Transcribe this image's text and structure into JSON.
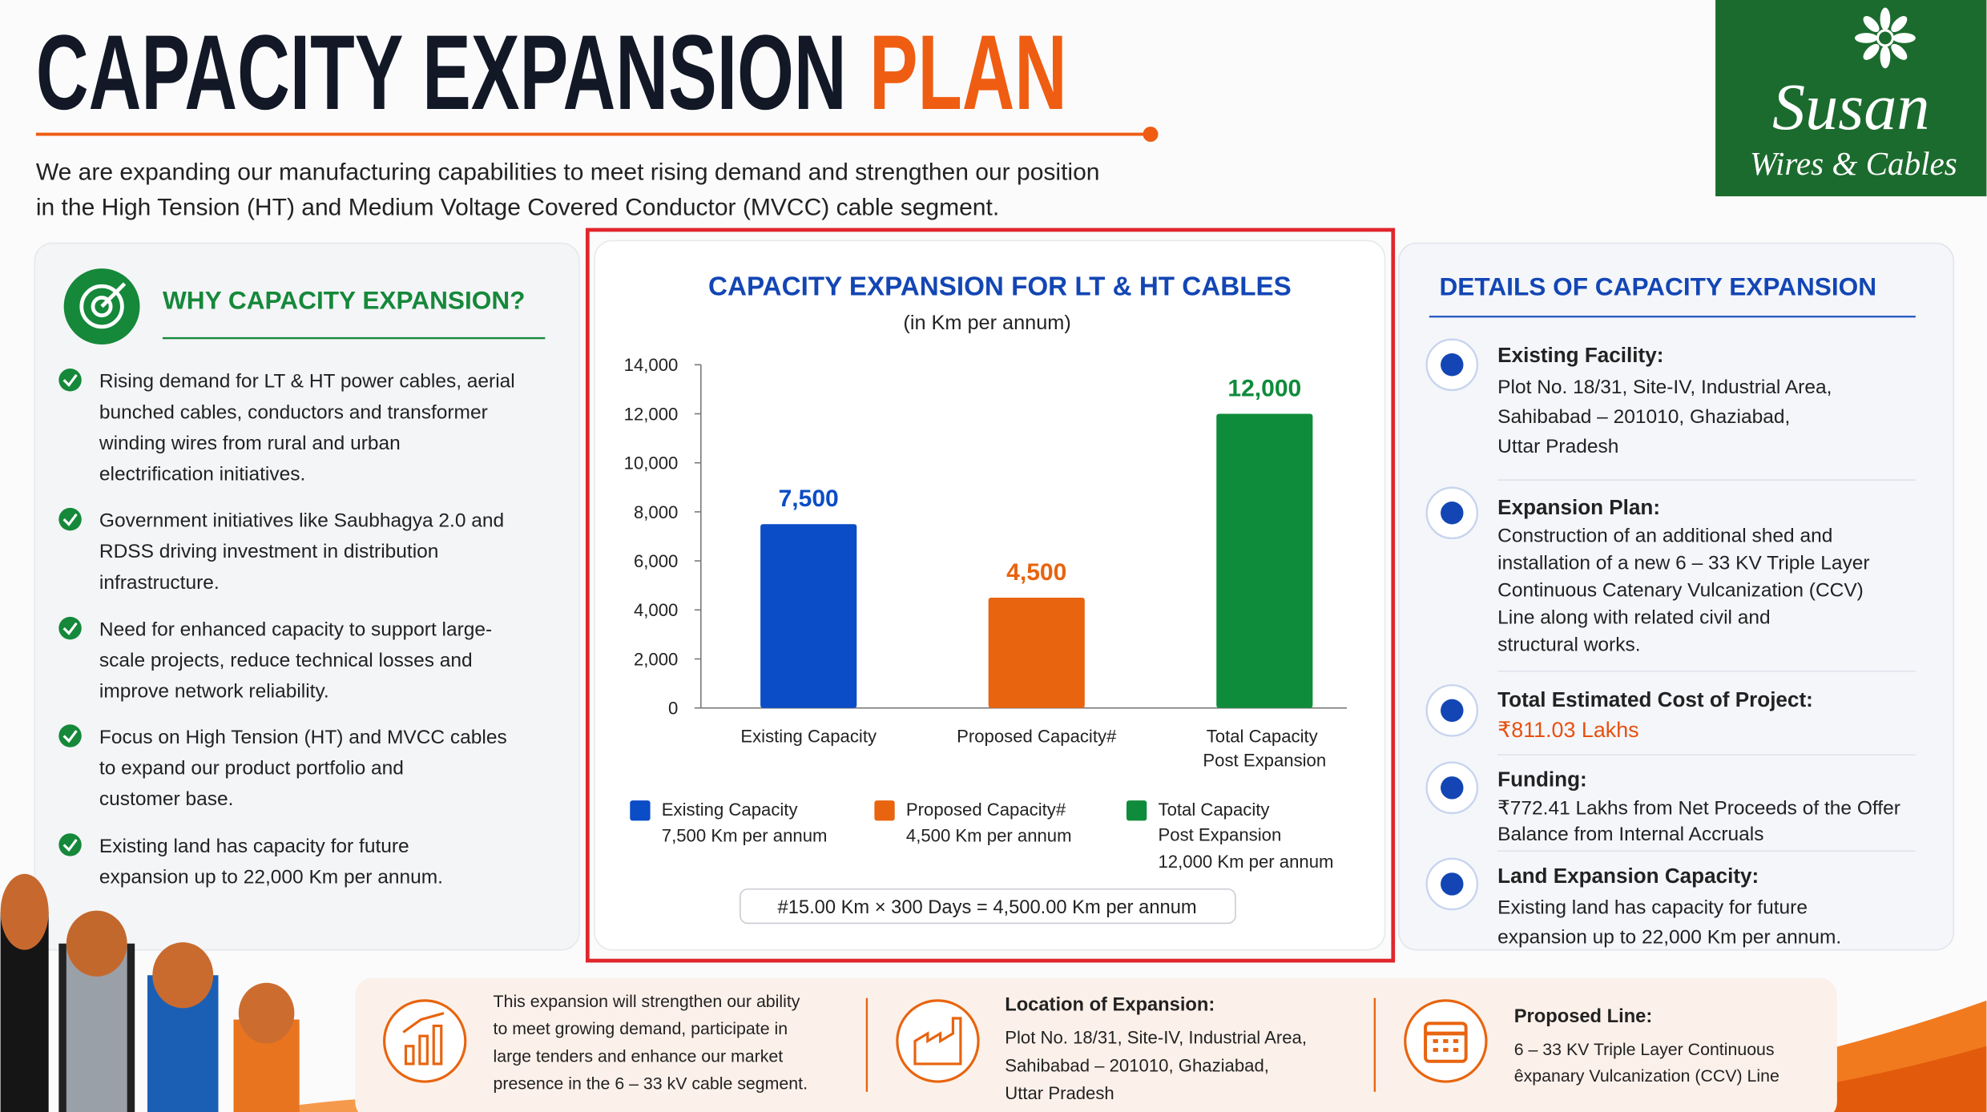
{
  "header": {
    "title_main": "CAPACITY EXPANSION",
    "title_accent": "PLAN",
    "intro": [
      "We are expanding our manufacturing capabilities to meet rising demand and strengthen our position",
      "in the High Tension (HT) and Medium Voltage Covered Conductor (MVCC) cable segment."
    ]
  },
  "logo": {
    "name": "Susan",
    "tagline": "Wires & Cables"
  },
  "why": {
    "heading": "WHY CAPACITY EXPANSION?",
    "bullets": [
      [
        "Rising demand for LT & HT power cables, aerial",
        "bunched cables, conductors and transformer",
        "winding wires from rural and urban",
        "electrification initiatives."
      ],
      [
        "Government initiatives like Saubhagya 2.0 and",
        "RDSS driving investment in distribution",
        "infrastructure."
      ],
      [
        "Need for enhanced capacity to support large-",
        "scale projects, reduce technical losses and",
        "improve network reliability."
      ],
      [
        "Focus on High Tension (HT) and MVCC cables",
        "to expand our product portfolio and",
        "customer base."
      ],
      [
        "Existing land has capacity for future",
        "expansion up to 22,000 Km per annum."
      ]
    ]
  },
  "chart_data": {
    "type": "bar",
    "title": "CAPACITY EXPANSION FOR LT & HT CABLES",
    "subtitle": "(in Km per annum)",
    "categories": [
      "Existing Capacity",
      "Proposed Capacity#",
      "Total Capacity Post Expansion"
    ],
    "values": [
      7500,
      4500,
      12000
    ],
    "value_labels": [
      "7,500",
      "4,500",
      "12,000"
    ],
    "colors": [
      "#0b4cc7",
      "#e8640f",
      "#0f8c3b"
    ],
    "ylim": [
      0,
      14000
    ],
    "yticks": [
      0,
      {
        "value": 2000,
        "label": "2,000"
      },
      {
        "value": 4000,
        "label": "4,000"
      },
      {
        "value": 6000,
        "label": "6,000"
      },
      {
        "value": 8000,
        "label": "8,000"
      },
      {
        "value": 10000,
        "label": "10,000"
      },
      {
        "value": 12000,
        "label": "12,000"
      },
      {
        "value": 14000,
        "label": "14,000"
      }
    ],
    "grid": false,
    "legend": [
      {
        "label": "Existing Capacity",
        "detail": "7,500 Km per annum"
      },
      {
        "label": "Proposed Capacity#",
        "detail": "4,500 Km per annum"
      },
      {
        "label": "Total Capacity Post Expansion",
        "detail": "12,000 Km per annum"
      }
    ],
    "footnote": "#15.00 Km × 300 Days = 4,500.00 Km per annum"
  },
  "details": {
    "heading": "DETAILS OF CAPACITY EXPANSION",
    "items": [
      {
        "heading": "Existing Facility:",
        "lines": [
          "Plot No. 18/31, Site-IV, Industrial Area,",
          "Sahibabad – 201010, Ghaziabad,",
          "Uttar Pradesh"
        ]
      },
      {
        "heading": "Expansion Plan:",
        "lines": [
          "Construction of an additional shed and",
          "installation of a new 6 – 33 KV Triple Layer",
          "Continuous Catenary Vulcanization (CCV)",
          "Line along with related civil and",
          "structural works."
        ]
      },
      {
        "heading": "Total Estimated Cost of Project:",
        "highlight": "₹811.03 Lakhs"
      },
      {
        "heading": "Funding:",
        "lines": [
          "₹772.41 Lakhs from Net Proceeds of the Offer",
          "Balance from Internal Accruals"
        ]
      },
      {
        "heading": "Land Expansion Capacity:",
        "lines": [
          "Existing land has capacity for future",
          "expansion up to 22,000 Km per annum."
        ]
      }
    ]
  },
  "bottom": {
    "summary": [
      "This expansion will strengthen our ability",
      "to meet growing demand, participate in",
      "large tenders and enhance our market",
      "presence in the 6 – 33 kV cable segment."
    ],
    "location": {
      "heading": "Location of Expansion:",
      "lines": [
        "Plot No. 18/31, Site-IV, Industrial Area,",
        "Sahibabad – 201010, Ghaziabad,",
        "Uttar Pradesh"
      ]
    },
    "line": {
      "heading": "Proposed Line:",
      "lines": [
        "6 – 33 KV Triple Layer Continuous",
        "êxpanary Vulcanization (CCV) Line"
      ]
    }
  }
}
